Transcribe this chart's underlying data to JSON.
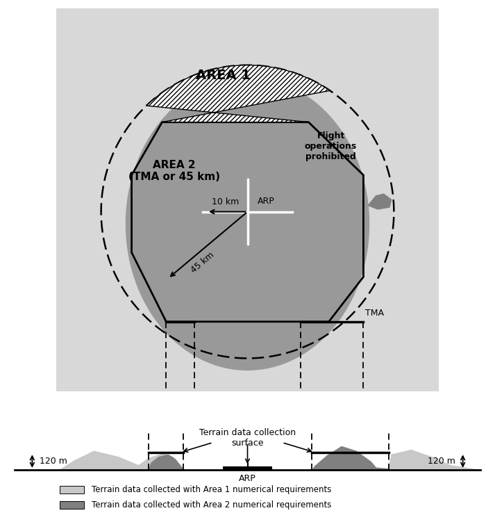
{
  "bg_gray": "#d8d8d8",
  "bg_white": "#ffffff",
  "area1_label": "AREA 1",
  "area2_label": "AREA 2\n(TMA or 45 km)",
  "arp_label": "ARP",
  "tma_label": "TMA",
  "flight_label": "Flight\noperations\nprohibited",
  "terrain_label": "Terrain data collection\nsurface",
  "arp_bottom_label": "ARP",
  "label_120m": "120 m",
  "legend1": "Terrain data collected with Area 1 numerical requirements",
  "legend2": "Terrain data collected with Area 2 numerical requirements",
  "color_bg_gray": "#d8d8d8",
  "color_area2_fill": "#999999",
  "color_light_terrain": "#c8c8c8",
  "color_dark_terrain": "#808080",
  "color_black": "#000000",
  "color_white": "#ffffff"
}
